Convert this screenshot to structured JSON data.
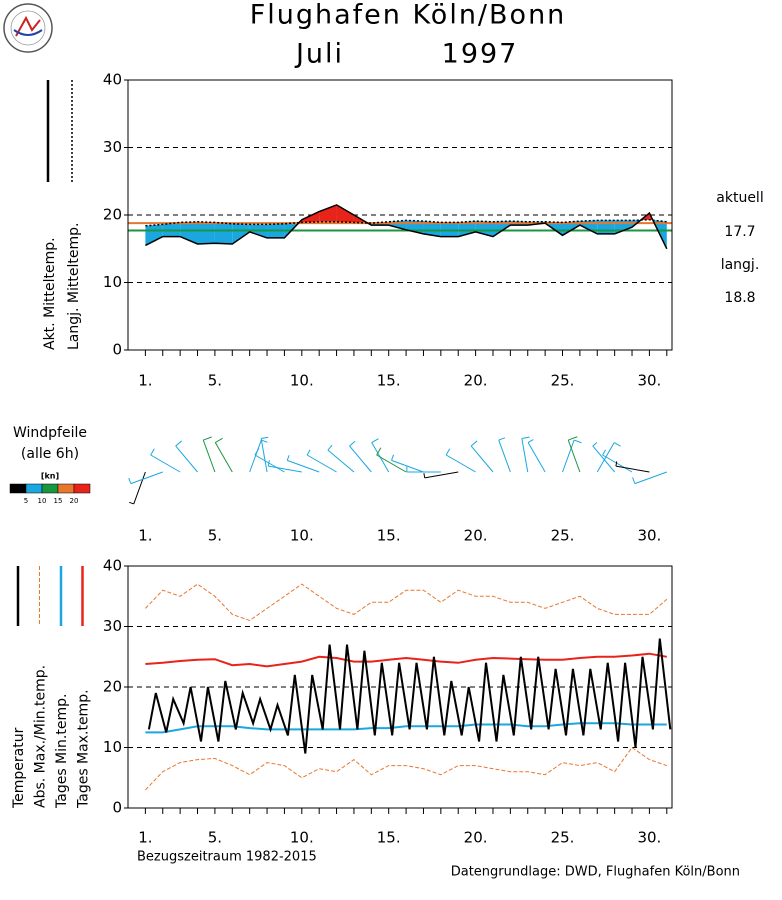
{
  "title": "Flughafen Köln/Bonn",
  "month": "Juli",
  "year": "1997",
  "reference_period": "Bezugszeitraum 1982-2015",
  "source": "Datengrundlage: DWD, Flughafen Köln/Bonn",
  "chart_data": [
    {
      "type": "mean_temperature",
      "x": [
        1,
        2,
        3,
        4,
        5,
        6,
        7,
        8,
        9,
        10,
        11,
        12,
        13,
        14,
        15,
        16,
        17,
        18,
        19,
        20,
        21,
        22,
        23,
        24,
        25,
        26,
        27,
        28,
        29,
        30,
        31
      ],
      "xlim": [
        0,
        31.3
      ],
      "xticks": [
        {
          "value": 1,
          "label": "1."
        },
        {
          "value": 5,
          "label": "5."
        },
        {
          "value": 10,
          "label": "10."
        },
        {
          "value": 15,
          "label": "15."
        },
        {
          "value": 20,
          "label": "20."
        },
        {
          "value": 25,
          "label": "25."
        },
        {
          "value": 30,
          "label": "30."
        }
      ],
      "xminorticks": [
        1,
        2,
        3,
        4,
        5,
        6,
        7,
        8,
        9,
        10,
        11,
        12,
        13,
        14,
        15,
        16,
        17,
        18,
        19,
        20,
        21,
        22,
        23,
        24,
        25,
        26,
        27,
        28,
        29,
        30,
        31
      ],
      "ylim": [
        0,
        40
      ],
      "yticks": [
        0,
        10,
        20,
        30,
        40
      ],
      "grid": true,
      "series": [
        {
          "name": "Akt. Mitteltemp.",
          "color": "#000000",
          "dash": false,
          "values": [
            15.5,
            16.8,
            16.8,
            15.7,
            15.8,
            15.7,
            17.5,
            16.6,
            16.6,
            19.3,
            20.5,
            21.5,
            20,
            18.5,
            18.5,
            17.8,
            17.2,
            16.8,
            16.8,
            17.5,
            16.8,
            18.5,
            18.5,
            18.8,
            17,
            18.5,
            17.2,
            17.2,
            18.2,
            20.3,
            15
          ]
        },
        {
          "name": "Langj. Mitteltemp.",
          "color": "#000000",
          "dash": true,
          "values": [
            18.4,
            18.6,
            18.9,
            19,
            18.9,
            18.7,
            18.6,
            18.6,
            18.7,
            18.9,
            19,
            19,
            18.9,
            18.8,
            19,
            19.2,
            19.1,
            18.9,
            18.9,
            19.1,
            19,
            19.1,
            19,
            19,
            18.9,
            19.1,
            19.2,
            19.2,
            19.2,
            19.3,
            19
          ]
        }
      ],
      "fill_below": "#1aa7e0",
      "fill_above": "#e8231a",
      "reference_lines": [
        {
          "label": "aktuell",
          "value": 17.7,
          "color": "#1a9641"
        },
        {
          "label": "langj.",
          "value": 18.8,
          "color": "#e8772e"
        }
      ]
    },
    {
      "type": "wind",
      "title": "Windpfeile",
      "subtitle": "(alle 6h)",
      "unit": "[kn]",
      "x": [
        1,
        2,
        3,
        4,
        5,
        6,
        7,
        8,
        9,
        10,
        11,
        12,
        13,
        14,
        15,
        16,
        17,
        18,
        19,
        20,
        21,
        22,
        23,
        24,
        25,
        26,
        27,
        28,
        29,
        30,
        31
      ],
      "xlim": [
        0,
        31.3
      ],
      "xticks": [
        {
          "value": 1,
          "label": "1."
        },
        {
          "value": 5,
          "label": "5."
        },
        {
          "value": 10,
          "label": "10."
        },
        {
          "value": 15,
          "label": "15."
        },
        {
          "value": 20,
          "label": "20."
        },
        {
          "value": 25,
          "label": "25."
        },
        {
          "value": 30,
          "label": "30."
        }
      ],
      "direction": [
        200,
        250,
        300,
        320,
        340,
        330,
        20,
        350,
        300,
        280,
        290,
        300,
        310,
        320,
        330,
        300,
        290,
        270,
        260,
        300,
        320,
        340,
        350,
        330,
        20,
        340,
        30,
        320,
        300,
        280,
        250
      ],
      "speed": [
        4,
        6,
        8,
        9,
        11,
        10,
        7,
        8,
        9,
        6,
        5,
        6,
        7,
        8,
        9,
        10,
        6,
        5,
        4,
        8,
        9,
        7,
        9,
        6,
        9,
        12,
        8,
        5,
        6,
        4,
        7
      ],
      "colorbar": {
        "ticks": [
          5,
          10,
          15,
          20
        ],
        "colors": [
          "#000000",
          "#1aa7e0",
          "#1a9641",
          "#e8772e",
          "#e8231a"
        ]
      }
    },
    {
      "type": "daily_temperature",
      "xlim": [
        0,
        31.3
      ],
      "xticks": [
        {
          "value": 1,
          "label": "1."
        },
        {
          "value": 5,
          "label": "5."
        },
        {
          "value": 10,
          "label": "10."
        },
        {
          "value": 15,
          "label": "15."
        },
        {
          "value": 20,
          "label": "20."
        },
        {
          "value": 25,
          "label": "25."
        },
        {
          "value": 30,
          "label": "30."
        }
      ],
      "xminorticks": [
        1,
        2,
        3,
        4,
        5,
        6,
        7,
        8,
        9,
        10,
        11,
        12,
        13,
        14,
        15,
        16,
        17,
        18,
        19,
        20,
        21,
        22,
        23,
        24,
        25,
        26,
        27,
        28,
        29,
        30,
        31
      ],
      "ylim": [
        0,
        40
      ],
      "yticks": [
        0,
        10,
        20,
        30,
        40
      ],
      "grid": true,
      "series": [
        {
          "name": "Temperatur",
          "color": "#000000",
          "width": 2,
          "dash": false,
          "x": [
            1.2,
            1.6,
            2.2,
            2.6,
            3.2,
            3.6,
            4.2,
            4.6,
            5.2,
            5.6,
            6.2,
            6.6,
            7.2,
            7.6,
            8.2,
            8.6,
            9.2,
            9.6,
            10.2,
            10.6,
            11.2,
            11.6,
            12.2,
            12.6,
            13.2,
            13.6,
            14.2,
            14.6,
            15.2,
            15.6,
            16.2,
            16.6,
            17.2,
            17.6,
            18.2,
            18.6,
            19.2,
            19.6,
            20.2,
            20.6,
            21.2,
            21.6,
            22.2,
            22.6,
            23.2,
            23.6,
            24.2,
            24.6,
            25.2,
            25.6,
            26.2,
            26.6,
            27.2,
            27.6,
            28.2,
            28.6,
            29.2,
            29.6,
            30.2,
            30.6,
            31.2
          ],
          "values": [
            13,
            19,
            12.5,
            18,
            14,
            20,
            11,
            20,
            11,
            21,
            13,
            19,
            14,
            18,
            13,
            17,
            12,
            22,
            9,
            22,
            13,
            27,
            13,
            27,
            13,
            26,
            12,
            24,
            12,
            24,
            13,
            24,
            13,
            25,
            12,
            21,
            12,
            20,
            11,
            24,
            11,
            22,
            12,
            25,
            13,
            25,
            13,
            23,
            12,
            23,
            12,
            23,
            13,
            24,
            11,
            24,
            10,
            25,
            13,
            28,
            13
          ]
        },
        {
          "name": "Abs. Max./Min.temp.",
          "color": "#e8772e",
          "width": 1,
          "dash": true,
          "values": [
            33,
            36,
            35,
            37,
            35,
            32,
            31,
            33,
            35,
            37,
            35,
            33,
            32,
            34,
            34,
            36,
            36,
            34,
            36,
            35,
            35,
            34,
            34,
            33,
            34,
            35,
            33,
            32,
            32,
            32,
            34.5
          ],
          "min_values": [
            3,
            6,
            7.5,
            8,
            8.2,
            7,
            5.5,
            7.5,
            7,
            5,
            6.5,
            6,
            8,
            5.5,
            7,
            7,
            6.5,
            5.5,
            7,
            7,
            6.5,
            6,
            6,
            5.5,
            7.5,
            7,
            7.5,
            6,
            10,
            8,
            7
          ]
        },
        {
          "name": "Tages Min.temp.",
          "color": "#1aa7e0",
          "width": 2,
          "dash": false,
          "values": [
            12.5,
            12.5,
            13,
            13.5,
            13.5,
            13.5,
            13.2,
            13,
            13,
            13,
            13,
            13,
            13,
            13.2,
            13.2,
            13.5,
            13.5,
            13.5,
            13.5,
            13.8,
            13.8,
            13.8,
            13.5,
            13.5,
            13.8,
            14,
            14,
            14,
            13.8,
            13.8,
            13.8
          ]
        },
        {
          "name": "Tages Max.temp.",
          "color": "#e8231a",
          "width": 2,
          "dash": false,
          "values": [
            23.8,
            24,
            24.3,
            24.5,
            24.6,
            23.6,
            23.8,
            23.4,
            23.8,
            24.2,
            25,
            24.8,
            24.2,
            24.2,
            24.5,
            24.8,
            24.5,
            24.2,
            24,
            24.5,
            24.8,
            24.7,
            24.6,
            24.5,
            24.5,
            24.8,
            25,
            25,
            25.2,
            25.5,
            25
          ]
        }
      ]
    }
  ]
}
